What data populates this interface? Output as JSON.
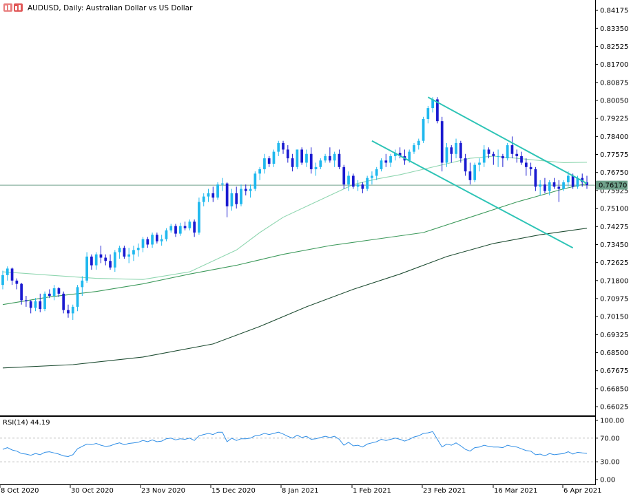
{
  "header": {
    "title": "AUDUSD, Daily:  Australian Dollar vs US Dollar",
    "icon": "chart-window-icon"
  },
  "colors": {
    "bull": "#1fb8ee",
    "bear": "#1a1ad0",
    "trend": "#2ec4b6",
    "ma_fast": "#8fd6b0",
    "ma_mid": "#3e9a5c",
    "ma_slow": "#1f4d33",
    "rsi": "#2f8ee6",
    "price_line": "#6fa08a",
    "price_tag": "#6fa08a",
    "axis": "#000000",
    "rsi_level": "#bbbbbb"
  },
  "chart_data": [
    {
      "type": "candlestick",
      "title": "AUDUSD, Daily:  Australian Dollar vs US Dollar",
      "ylim": [
        0.6565,
        0.8465
      ],
      "y_ticks": [
        "0.84175",
        "0.83350",
        "0.82525",
        "0.81700",
        "0.80875",
        "0.80050",
        "0.79225",
        "0.78400",
        "0.77575",
        "0.76750",
        "0.75925",
        "0.75100",
        "0.74275",
        "0.73450",
        "0.72625",
        "0.71800",
        "0.70975",
        "0.70150",
        "0.69325",
        "0.68500",
        "0.67675",
        "0.66850",
        "0.66025"
      ],
      "x_labels": [
        "8 Oct 2020",
        "30 Oct 2020",
        "23 Nov 2020",
        "15 Dec 2020",
        "8 Jan 2021",
        "1 Feb 2021",
        "23 Feb 2021",
        "16 Mar 2021",
        "6 Apr 2021"
      ],
      "current_price": "0.76170",
      "ohlc": [
        [
          0.716,
          0.7225,
          0.714,
          0.7205
        ],
        [
          0.7205,
          0.7245,
          0.718,
          0.7235
        ],
        [
          0.7235,
          0.724,
          0.716,
          0.718
        ],
        [
          0.718,
          0.719,
          0.714,
          0.7165
        ],
        [
          0.7165,
          0.717,
          0.707,
          0.709
        ],
        [
          0.709,
          0.711,
          0.706,
          0.7085
        ],
        [
          0.7085,
          0.709,
          0.703,
          0.7055
        ],
        [
          0.7055,
          0.71,
          0.704,
          0.7085
        ],
        [
          0.7085,
          0.712,
          0.7035,
          0.705
        ],
        [
          0.705,
          0.713,
          0.704,
          0.712
        ],
        [
          0.712,
          0.714,
          0.71,
          0.711
        ],
        [
          0.711,
          0.716,
          0.709,
          0.7145
        ],
        [
          0.7145,
          0.715,
          0.7105,
          0.712
        ],
        [
          0.712,
          0.713,
          0.703,
          0.7045
        ],
        [
          0.7045,
          0.707,
          0.701,
          0.703
        ],
        [
          0.703,
          0.707,
          0.7,
          0.706
        ],
        [
          0.706,
          0.716,
          0.704,
          0.715
        ],
        [
          0.715,
          0.72,
          0.711,
          0.718
        ],
        [
          0.718,
          0.731,
          0.717,
          0.729
        ],
        [
          0.729,
          0.73,
          0.723,
          0.725
        ],
        [
          0.725,
          0.731,
          0.723,
          0.73
        ],
        [
          0.73,
          0.734,
          0.726,
          0.7285
        ],
        [
          0.7285,
          0.73,
          0.725,
          0.727
        ],
        [
          0.727,
          0.73,
          0.723,
          0.724
        ],
        [
          0.724,
          0.732,
          0.722,
          0.731
        ],
        [
          0.731,
          0.734,
          0.728,
          0.733
        ],
        [
          0.733,
          0.734,
          0.728,
          0.729
        ],
        [
          0.729,
          0.733,
          0.726,
          0.73
        ],
        [
          0.73,
          0.734,
          0.727,
          0.732
        ],
        [
          0.732,
          0.735,
          0.729,
          0.733
        ],
        [
          0.733,
          0.738,
          0.731,
          0.737
        ],
        [
          0.737,
          0.738,
          0.733,
          0.7345
        ],
        [
          0.7345,
          0.74,
          0.733,
          0.739
        ],
        [
          0.739,
          0.74,
          0.735,
          0.736
        ],
        [
          0.736,
          0.739,
          0.734,
          0.737
        ],
        [
          0.737,
          0.742,
          0.736,
          0.741
        ],
        [
          0.741,
          0.744,
          0.74,
          0.743
        ],
        [
          0.743,
          0.744,
          0.738,
          0.7395
        ],
        [
          0.7395,
          0.7445,
          0.7385,
          0.743
        ],
        [
          0.743,
          0.745,
          0.741,
          0.742
        ],
        [
          0.742,
          0.746,
          0.741,
          0.745
        ],
        [
          0.745,
          0.746,
          0.738,
          0.74
        ],
        [
          0.74,
          0.756,
          0.739,
          0.754
        ],
        [
          0.754,
          0.758,
          0.752,
          0.7565
        ],
        [
          0.7565,
          0.76,
          0.754,
          0.758
        ],
        [
          0.758,
          0.761,
          0.754,
          0.756
        ],
        [
          0.756,
          0.763,
          0.755,
          0.762
        ],
        [
          0.762,
          0.765,
          0.759,
          0.7625
        ],
        [
          0.7625,
          0.763,
          0.747,
          0.752
        ],
        [
          0.752,
          0.76,
          0.75,
          0.758
        ],
        [
          0.758,
          0.761,
          0.751,
          0.753
        ],
        [
          0.753,
          0.762,
          0.752,
          0.76
        ],
        [
          0.76,
          0.762,
          0.757,
          0.759
        ],
        [
          0.759,
          0.762,
          0.756,
          0.76
        ],
        [
          0.76,
          0.768,
          0.759,
          0.767
        ],
        [
          0.767,
          0.77,
          0.764,
          0.769
        ],
        [
          0.769,
          0.776,
          0.767,
          0.774
        ],
        [
          0.774,
          0.775,
          0.77,
          0.7715
        ],
        [
          0.7715,
          0.778,
          0.77,
          0.777
        ],
        [
          0.777,
          0.782,
          0.775,
          0.781
        ],
        [
          0.781,
          0.782,
          0.776,
          0.778
        ],
        [
          0.778,
          0.78,
          0.772,
          0.774
        ],
        [
          0.774,
          0.776,
          0.768,
          0.77
        ],
        [
          0.77,
          0.778,
          0.769,
          0.778
        ],
        [
          0.778,
          0.779,
          0.771,
          0.772
        ],
        [
          0.772,
          0.778,
          0.77,
          0.776
        ],
        [
          0.776,
          0.779,
          0.767,
          0.769
        ],
        [
          0.769,
          0.772,
          0.766,
          0.77
        ],
        [
          0.77,
          0.774,
          0.769,
          0.773
        ],
        [
          0.773,
          0.776,
          0.772,
          0.775
        ],
        [
          0.775,
          0.779,
          0.772,
          0.773
        ],
        [
          0.773,
          0.777,
          0.77,
          0.776
        ],
        [
          0.776,
          0.778,
          0.769,
          0.77
        ],
        [
          0.77,
          0.771,
          0.76,
          0.762
        ],
        [
          0.762,
          0.768,
          0.759,
          0.766
        ],
        [
          0.766,
          0.767,
          0.76,
          0.761
        ],
        [
          0.761,
          0.764,
          0.759,
          0.762
        ],
        [
          0.762,
          0.763,
          0.758,
          0.76
        ],
        [
          0.76,
          0.766,
          0.759,
          0.765
        ],
        [
          0.765,
          0.768,
          0.762,
          0.766
        ],
        [
          0.766,
          0.77,
          0.764,
          0.769
        ],
        [
          0.769,
          0.774,
          0.768,
          0.773
        ],
        [
          0.773,
          0.776,
          0.77,
          0.772
        ],
        [
          0.772,
          0.776,
          0.77,
          0.775
        ],
        [
          0.775,
          0.778,
          0.773,
          0.7765
        ],
        [
          0.7765,
          0.779,
          0.774,
          0.775
        ],
        [
          0.775,
          0.778,
          0.771,
          0.773
        ],
        [
          0.773,
          0.778,
          0.772,
          0.777
        ],
        [
          0.777,
          0.781,
          0.776,
          0.78
        ],
        [
          0.78,
          0.783,
          0.778,
          0.782
        ],
        [
          0.782,
          0.793,
          0.781,
          0.792
        ],
        [
          0.792,
          0.798,
          0.79,
          0.797
        ],
        [
          0.797,
          0.802,
          0.795,
          0.801
        ],
        [
          0.801,
          0.802,
          0.79,
          0.791
        ],
        [
          0.791,
          0.793,
          0.768,
          0.772
        ],
        [
          0.772,
          0.781,
          0.77,
          0.779
        ],
        [
          0.779,
          0.78,
          0.772,
          0.776
        ],
        [
          0.776,
          0.783,
          0.774,
          0.781
        ],
        [
          0.781,
          0.782,
          0.772,
          0.774
        ],
        [
          0.774,
          0.776,
          0.766,
          0.768
        ],
        [
          0.768,
          0.772,
          0.762,
          0.764
        ],
        [
          0.764,
          0.772,
          0.763,
          0.771
        ],
        [
          0.771,
          0.774,
          0.768,
          0.772
        ],
        [
          0.772,
          0.78,
          0.77,
          0.778
        ],
        [
          0.778,
          0.779,
          0.774,
          0.776
        ],
        [
          0.776,
          0.777,
          0.771,
          0.775
        ],
        [
          0.775,
          0.778,
          0.77,
          0.775
        ],
        [
          0.775,
          0.776,
          0.77,
          0.774
        ],
        [
          0.774,
          0.781,
          0.773,
          0.78
        ],
        [
          0.78,
          0.784,
          0.774,
          0.776
        ],
        [
          0.776,
          0.778,
          0.772,
          0.775
        ],
        [
          0.775,
          0.777,
          0.771,
          0.772
        ],
        [
          0.772,
          0.774,
          0.766,
          0.77
        ],
        [
          0.77,
          0.772,
          0.766,
          0.769
        ],
        [
          0.769,
          0.77,
          0.759,
          0.761
        ],
        [
          0.761,
          0.764,
          0.757,
          0.762
        ],
        [
          0.762,
          0.765,
          0.758,
          0.759
        ],
        [
          0.759,
          0.764,
          0.757,
          0.763
        ],
        [
          0.763,
          0.765,
          0.76,
          0.761
        ],
        [
          0.761,
          0.764,
          0.754,
          0.76
        ],
        [
          0.76,
          0.764,
          0.759,
          0.763
        ],
        [
          0.763,
          0.768,
          0.761,
          0.766
        ],
        [
          0.766,
          0.767,
          0.76,
          0.761
        ],
        [
          0.761,
          0.766,
          0.76,
          0.765
        ],
        [
          0.765,
          0.767,
          0.761,
          0.763
        ],
        [
          0.763,
          0.766,
          0.76,
          0.7617
        ]
      ],
      "moving_averages": [
        {
          "color": "ma_fast",
          "values": [
            [
              0,
              0.722
            ],
            [
              10,
              0.7205
            ],
            [
              20,
              0.719
            ],
            [
              30,
              0.7185
            ],
            [
              40,
              0.722
            ],
            [
              50,
              0.732
            ],
            [
              55,
              0.74
            ],
            [
              60,
              0.747
            ],
            [
              65,
              0.752
            ],
            [
              70,
              0.757
            ],
            [
              75,
              0.762
            ],
            [
              80,
              0.7645
            ],
            [
              85,
              0.7665
            ],
            [
              90,
              0.769
            ],
            [
              95,
              0.7715
            ],
            [
              100,
              0.774
            ],
            [
              105,
              0.775
            ],
            [
              110,
              0.774
            ],
            [
              115,
              0.773
            ],
            [
              120,
              0.772
            ],
            [
              125,
              0.7722
            ]
          ]
        },
        {
          "color": "ma_mid",
          "values": [
            [
              0,
              0.707
            ],
            [
              10,
              0.7105
            ],
            [
              20,
              0.713
            ],
            [
              30,
              0.7165
            ],
            [
              40,
              0.721
            ],
            [
              50,
              0.725
            ],
            [
              60,
              0.73
            ],
            [
              70,
              0.734
            ],
            [
              80,
              0.737
            ],
            [
              90,
              0.74
            ],
            [
              100,
              0.747
            ],
            [
              110,
              0.754
            ],
            [
              120,
              0.76
            ],
            [
              125,
              0.7625
            ]
          ]
        },
        {
          "color": "ma_slow",
          "values": [
            [
              0,
              0.678
            ],
            [
              15,
              0.6795
            ],
            [
              30,
              0.683
            ],
            [
              45,
              0.689
            ],
            [
              55,
              0.697
            ],
            [
              65,
              0.706
            ],
            [
              75,
              0.714
            ],
            [
              85,
              0.721
            ],
            [
              95,
              0.729
            ],
            [
              105,
              0.735
            ],
            [
              115,
              0.739
            ],
            [
              125,
              0.742
            ]
          ]
        }
      ],
      "trend_lines": [
        {
          "from": [
            79,
            0.782
          ],
          "to": [
            122,
            0.733
          ]
        },
        {
          "from": [
            91,
            0.802
          ],
          "to": [
            125,
            0.7625
          ]
        }
      ]
    },
    {
      "type": "line",
      "title": "RSI(14) 44.19",
      "ylim": [
        0,
        100
      ],
      "y_ticks": [
        "100.00",
        "70.00",
        "30.00",
        "0.00"
      ],
      "levels": [
        70,
        30
      ],
      "values": [
        51,
        54,
        50,
        48,
        44,
        43,
        41,
        44,
        42,
        46,
        47,
        45,
        43,
        40,
        39,
        42,
        52,
        56,
        60,
        59,
        61,
        58,
        56,
        57,
        60,
        62,
        59,
        61,
        62,
        63,
        66,
        64,
        67,
        64,
        65,
        69,
        70,
        67,
        69,
        68,
        70,
        66,
        74,
        76,
        78,
        76,
        80,
        80,
        64,
        70,
        66,
        69,
        69,
        70,
        74,
        75,
        78,
        76,
        78,
        80,
        77,
        73,
        70,
        75,
        71,
        73,
        68,
        69,
        71,
        73,
        71,
        73,
        68,
        58,
        63,
        57,
        58,
        55,
        60,
        62,
        64,
        68,
        66,
        68,
        70,
        68,
        65,
        68,
        72,
        74,
        78,
        79,
        81,
        68,
        55,
        60,
        58,
        62,
        57,
        51,
        48,
        54,
        55,
        58,
        56,
        55,
        55,
        54,
        58,
        56,
        55,
        52,
        49,
        48,
        42,
        43,
        40,
        44,
        42,
        43,
        44,
        47,
        43,
        46,
        45,
        44.19
      ]
    }
  ]
}
